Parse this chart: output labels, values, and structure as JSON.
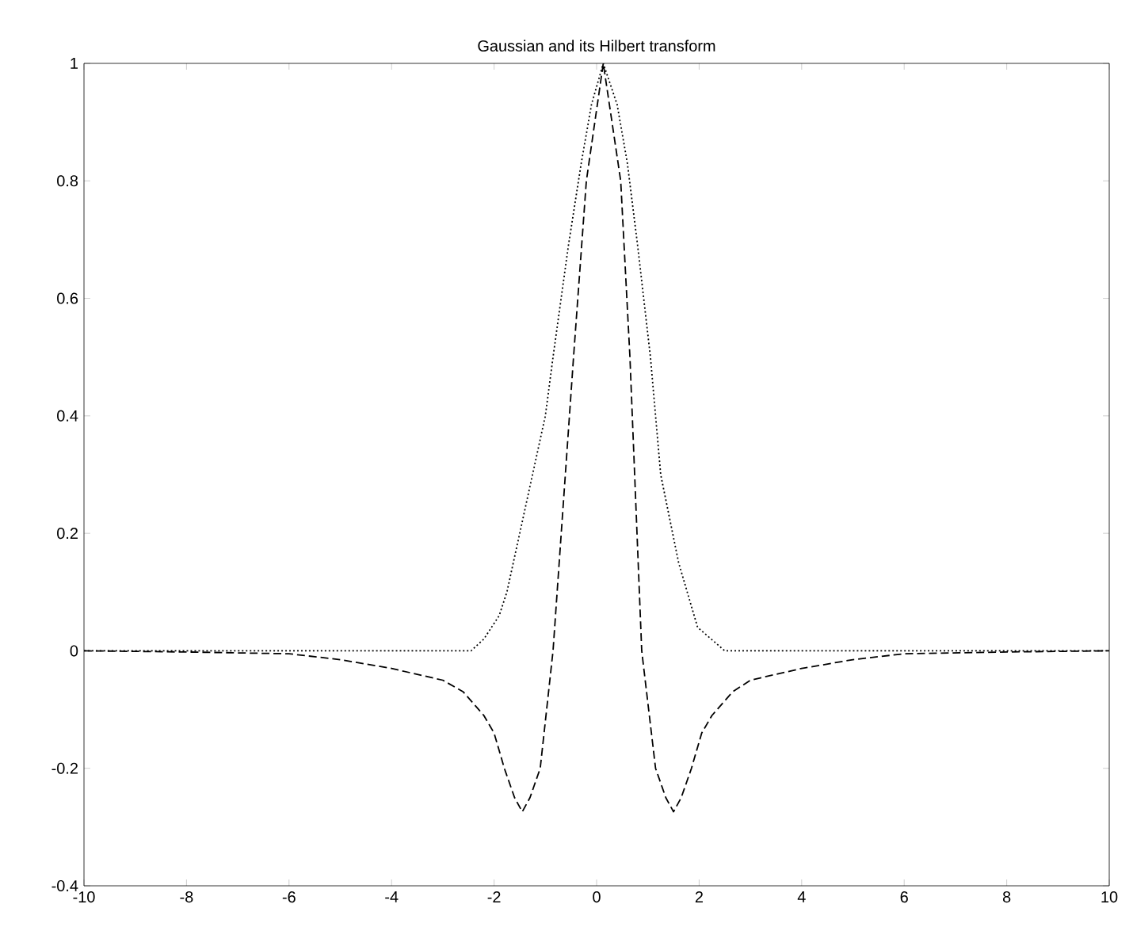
{
  "chart_data": {
    "type": "line",
    "title": "Gaussian and its Hilbert transform",
    "xlim": [
      -10,
      10
    ],
    "ylim": [
      -0.4,
      1
    ],
    "xticks": [
      -10,
      -8,
      -6,
      -4,
      -2,
      0,
      2,
      4,
      6,
      8,
      10
    ],
    "yticks": [
      -0.4,
      -0.2,
      0,
      0.2,
      0.4,
      0.6,
      0.8,
      1
    ],
    "grid": false,
    "marker": "none",
    "series": [
      {
        "color": "#000000",
        "line_style": "dotted",
        "x": [
          -10,
          -6,
          -2.45,
          -2.2,
          -1.9,
          -1.75,
          -1.5,
          -1.25,
          -1.0,
          -0.85,
          -0.55,
          -0.3,
          -0.1,
          0.13,
          0.4,
          0.6,
          0.8,
          1.05,
          1.25,
          1.6,
          1.97,
          2.5,
          6,
          10
        ],
        "values": [
          0,
          0,
          0,
          0.02,
          0.06,
          0.1,
          0.2,
          0.3,
          0.4,
          0.5,
          0.69,
          0.83,
          0.93,
          1.0,
          0.93,
          0.83,
          0.69,
          0.5,
          0.3,
          0.15,
          0.04,
          0,
          0,
          0
        ]
      },
      {
        "color": "#000000",
        "line_style": "dashed",
        "x": [
          -10,
          -8,
          -6,
          -5,
          -4,
          -3,
          -2.6,
          -2.2,
          -2.0,
          -1.8,
          -1.6,
          -1.45,
          -1.3,
          -1.1,
          -0.85,
          -0.45,
          -0.2,
          0.13,
          0.47,
          0.65,
          0.88,
          1.15,
          1.35,
          1.5,
          1.65,
          1.85,
          2.05,
          2.25,
          2.65,
          3,
          4,
          5,
          6,
          8,
          10
        ],
        "values": [
          0,
          -0.002,
          -0.005,
          -0.015,
          -0.03,
          -0.05,
          -0.07,
          -0.11,
          -0.14,
          -0.2,
          -0.25,
          -0.274,
          -0.25,
          -0.2,
          0,
          0.5,
          0.8,
          1.0,
          0.8,
          0.5,
          0,
          -0.2,
          -0.25,
          -0.274,
          -0.25,
          -0.2,
          -0.14,
          -0.11,
          -0.07,
          -0.05,
          -0.03,
          -0.015,
          -0.005,
          -0.002,
          0
        ]
      }
    ]
  }
}
